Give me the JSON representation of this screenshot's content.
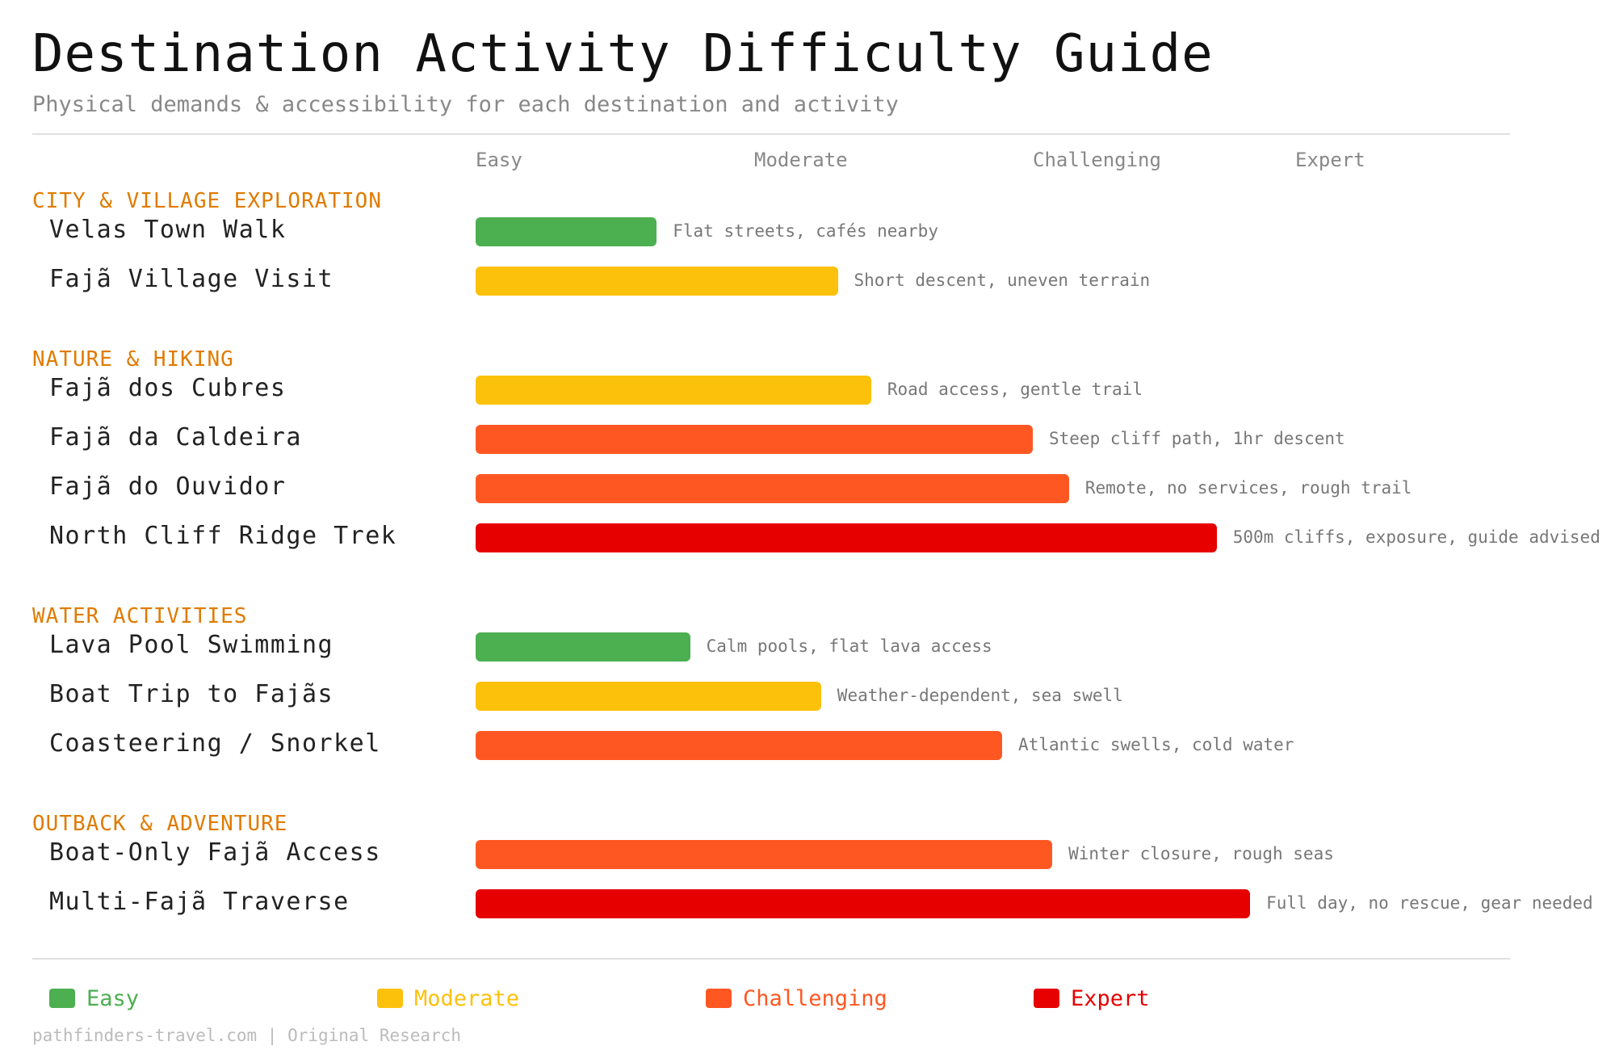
{
  "title": "Destination Activity Difficulty Guide",
  "subtitle": "Physical demands & accessibility for each destination and activity",
  "footer": "pathfinders-travel.com | Original Research",
  "colors": {
    "easy": "#4caf50",
    "moderate": "#fcc10b",
    "challenging": "#ff5722",
    "expert": "#e60000",
    "section": "#e07b00"
  },
  "chart_data": {
    "type": "bar",
    "orientation": "horizontal",
    "scale": [
      "Easy",
      "Moderate",
      "Challenging",
      "Expert"
    ],
    "xlim": [
      0,
      4
    ],
    "grid": false,
    "legend_placement": "bottom",
    "legend": [
      {
        "label": "Easy",
        "color": "#4caf50"
      },
      {
        "label": "Moderate",
        "color": "#fcc10b"
      },
      {
        "label": "Challenging",
        "color": "#ff5722"
      },
      {
        "label": "Expert",
        "color": "#e60000"
      }
    ],
    "sections": [
      {
        "name": "CITY & VILLAGE EXPLORATION",
        "items": [
          {
            "label": "Velas Town Walk",
            "value": 0.65,
            "level": "easy",
            "note": "Flat streets, cafés nearby"
          },
          {
            "label": "Fajã Village Visit",
            "value": 1.3,
            "level": "moderate",
            "note": "Short descent, uneven terrain"
          }
        ]
      },
      {
        "name": "NATURE & HIKING",
        "items": [
          {
            "label": "Fajã dos Cubres",
            "value": 1.42,
            "level": "moderate",
            "note": "Road access, gentle trail"
          },
          {
            "label": "Fajã da Caldeira",
            "value": 2.0,
            "level": "challenging",
            "note": "Steep cliff path, 1hr descent"
          },
          {
            "label": "Fajã do Ouvidor",
            "value": 2.13,
            "level": "challenging",
            "note": "Remote, no services, rough trail"
          },
          {
            "label": "North Cliff Ridge Trek",
            "value": 2.66,
            "level": "expert",
            "note": "500m cliffs, exposure, guide advised"
          }
        ]
      },
      {
        "name": "WATER ACTIVITIES",
        "items": [
          {
            "label": "Lava Pool Swimming",
            "value": 0.77,
            "level": "easy",
            "note": "Calm pools, flat lava access"
          },
          {
            "label": "Boat Trip to Fajãs",
            "value": 1.24,
            "level": "moderate",
            "note": "Weather-dependent, sea swell"
          },
          {
            "label": "Coasteering / Snorkel",
            "value": 1.89,
            "level": "challenging",
            "note": "Atlantic swells, cold water"
          }
        ]
      },
      {
        "name": "OUTBACK & ADVENTURE",
        "items": [
          {
            "label": "Boat-Only Fajã Access",
            "value": 2.07,
            "level": "challenging",
            "note": "Winter closure, rough seas"
          },
          {
            "label": "Multi-Fajã Traverse",
            "value": 2.78,
            "level": "expert",
            "note": "Full day, no rescue, gear needed"
          }
        ]
      }
    ]
  }
}
